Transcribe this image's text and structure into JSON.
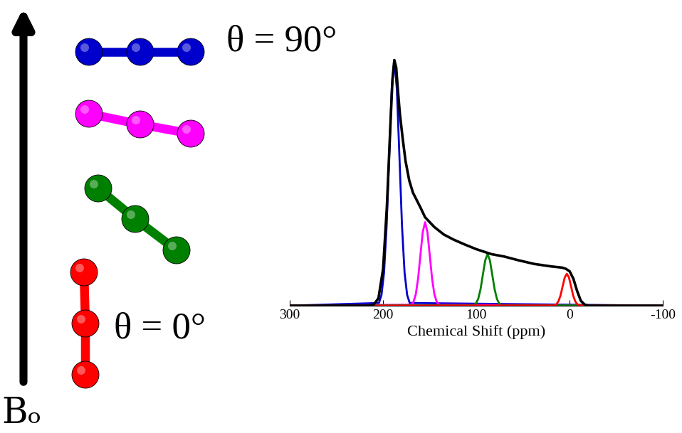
{
  "chart_data": {
    "type": "line",
    "xlabel": "Chemical Shift (ppm)",
    "xlim": [
      300,
      -100
    ],
    "xticks": [
      300,
      200,
      100,
      0,
      -100
    ],
    "ylim": [
      0,
      1.04
    ],
    "tick_labels": "x",
    "annotations": [
      "θ = 90°",
      "θ = 0°",
      "Bₒ"
    ],
    "series": [
      {
        "color": "#0000cc",
        "x": [
          300,
          204.5,
          201.75,
          199,
          196.25,
          193.5,
          190.75,
          188,
          185.25,
          182.5,
          179.75,
          177,
          174.25,
          171.5,
          -100
        ],
        "values": [
          0,
          0.011,
          0.044,
          0.135,
          0.325,
          0.607,
          0.882,
          1.0,
          0.882,
          0.607,
          0.325,
          0.135,
          0.044,
          0.011,
          0
        ]
      },
      {
        "color": "#ff00ff",
        "x": [
          300,
          170,
          167.5,
          165,
          162.5,
          160,
          157.5,
          155,
          152.5,
          150,
          147.5,
          145,
          142.5,
          140,
          -100
        ],
        "values": [
          0,
          0.004,
          0.015,
          0.046,
          0.11,
          0.206,
          0.3,
          0.34,
          0.3,
          0.206,
          0.11,
          0.046,
          0.015,
          0.004,
          0
        ]
      },
      {
        "color": "#008000",
        "x": [
          300,
          103,
          100.5,
          98,
          95.5,
          93,
          90.5,
          88,
          85.5,
          83,
          80.5,
          78,
          75.5,
          73,
          -100
        ],
        "values": [
          0,
          0.002,
          0.009,
          0.028,
          0.068,
          0.127,
          0.185,
          0.21,
          0.185,
          0.127,
          0.068,
          0.028,
          0.009,
          0.002,
          0
        ]
      },
      {
        "color": "#ff0000",
        "x": [
          300,
          16.5,
          14.25,
          12,
          9.75,
          7.5,
          5.25,
          3,
          0.75,
          -1.5,
          -3.75,
          -6,
          -8.25,
          -10.5,
          -100
        ],
        "values": [
          0,
          0.001,
          0.006,
          0.018,
          0.042,
          0.079,
          0.115,
          0.13,
          0.115,
          0.079,
          0.042,
          0.018,
          0.006,
          0.001,
          0
        ]
      },
      {
        "color": "#000000",
        "x": [
          300,
          215,
          210,
          205,
          200,
          196,
          192,
          190,
          188,
          186,
          184,
          182,
          179,
          176,
          172,
          168,
          164,
          160,
          155,
          145,
          135,
          125,
          113,
          100,
          84,
          70,
          55,
          38,
          20,
          8,
          4,
          0,
          -4,
          -8,
          -12,
          -16,
          -20,
          -30,
          -100
        ],
        "values": [
          0,
          0,
          0.005,
          0.03,
          0.15,
          0.4,
          0.75,
          0.92,
          1.0,
          0.97,
          0.87,
          0.78,
          0.68,
          0.59,
          0.51,
          0.46,
          0.43,
          0.4,
          0.36,
          0.32,
          0.29,
          0.27,
          0.25,
          0.23,
          0.21,
          0.2,
          0.185,
          0.17,
          0.16,
          0.155,
          0.15,
          0.14,
          0.11,
          0.06,
          0.02,
          0.005,
          0,
          0,
          0
        ]
      }
    ]
  }
}
